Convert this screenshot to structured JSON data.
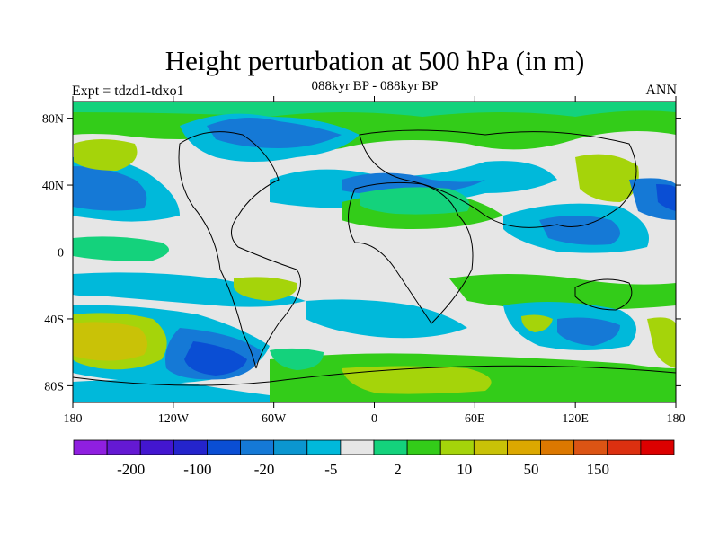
{
  "title": "Height perturbation at 500 hPa (in m)",
  "left_string": "Expt = tdzd1-tdxo1",
  "center_string": "088kyr BP - 088kyr BP",
  "right_string": "ANN",
  "lat_labels": [
    "80N",
    "40N",
    "0",
    "40S",
    "80S"
  ],
  "lat_values": [
    80,
    40,
    0,
    -40,
    -80
  ],
  "lon_labels": [
    "180",
    "120W",
    "60W",
    "0",
    "60E",
    "120E",
    "180"
  ],
  "lon_values": [
    -180,
    -120,
    -60,
    0,
    60,
    120,
    180
  ],
  "colorbar": {
    "colors": [
      "#8f1fe0",
      "#6419d3",
      "#4316d0",
      "#2424cc",
      "#0a4ed4",
      "#1579d6",
      "#0b96d0",
      "#00b9da",
      "#e6e6e6",
      "#14d27c",
      "#33cc19",
      "#a5d40a",
      "#c9c207",
      "#dca800",
      "#dc7800",
      "#dc5414",
      "#dc3010",
      "#dc0000"
    ],
    "label_positions": [
      1,
      3,
      5,
      7,
      9,
      11,
      13,
      15
    ],
    "labels": [
      "-200",
      "-100",
      "-20",
      "-5",
      "2",
      "10",
      "50",
      "150"
    ]
  },
  "fields": {
    "blobs": [
      {
        "lon": -160,
        "lat": 35,
        "rx": 28,
        "ry": 13,
        "level": 5
      },
      {
        "lon": -160,
        "lat": 35,
        "rx": 18,
        "ry": 8,
        "level": 4
      },
      {
        "lon": -150,
        "lat": -50,
        "rx": 40,
        "ry": 16,
        "level": 12
      },
      {
        "lon": -150,
        "lat": -52,
        "rx": 28,
        "ry": 10,
        "level": 13
      },
      {
        "lon": -80,
        "lat": -62,
        "rx": 40,
        "ry": 14,
        "level": 5
      },
      {
        "lon": -80,
        "lat": -62,
        "rx": 25,
        "ry": 9,
        "level": 4
      },
      {
        "lon": -60,
        "lat": 72,
        "rx": 50,
        "ry": 12,
        "level": 6
      },
      {
        "lon": -40,
        "lat": 72,
        "rx": 30,
        "ry": 7,
        "level": 5
      },
      {
        "lon": -55,
        "lat": 35,
        "rx": 30,
        "ry": 10,
        "level": 6
      },
      {
        "lon": 20,
        "lat": 30,
        "rx": 30,
        "ry": 12,
        "level": 10
      },
      {
        "lon": 40,
        "lat": 75,
        "rx": 30,
        "ry": 8,
        "level": 11
      },
      {
        "lon": 75,
        "lat": 40,
        "rx": 25,
        "ry": 10,
        "level": 7
      },
      {
        "lon": 140,
        "lat": 45,
        "rx": 20,
        "ry": 15,
        "level": 11
      },
      {
        "lon": 120,
        "lat": 15,
        "rx": 25,
        "ry": 15,
        "level": 6
      },
      {
        "lon": 100,
        "lat": -42,
        "rx": 30,
        "ry": 12,
        "level": 10
      },
      {
        "lon": 100,
        "lat": -42,
        "rx": 10,
        "ry": 5,
        "level": 11
      },
      {
        "lon": 30,
        "lat": -75,
        "rx": 45,
        "ry": 10,
        "level": 10
      },
      {
        "lon": 30,
        "lat": -78,
        "rx": 25,
        "ry": 6,
        "level": 11
      },
      {
        "lon": 175,
        "lat": 35,
        "rx": 10,
        "ry": 10,
        "level": 5
      },
      {
        "lon": 175,
        "lat": -50,
        "rx": 10,
        "ry": 18,
        "level": 11
      }
    ]
  }
}
